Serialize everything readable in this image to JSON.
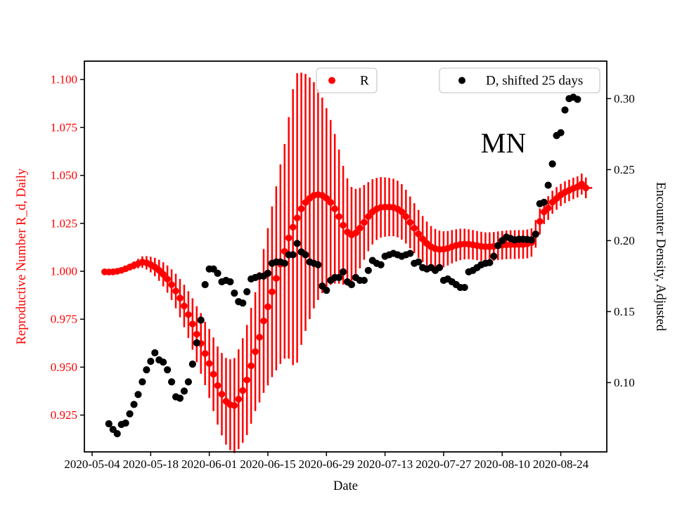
{
  "figure": {
    "background": "#ffffff",
    "annotation_text": "MN"
  },
  "legends": [
    {
      "label": "R",
      "marker_color": "#ff0000"
    },
    {
      "label": "D, shifted 25 days",
      "marker_color": "#000000"
    }
  ],
  "chart_data": {
    "type": "scatter",
    "title": "",
    "xlabel": "Date",
    "grid": false,
    "annotations": [
      {
        "text": "MN"
      }
    ],
    "x_axis": {
      "label": "Date",
      "epoch": "2020-05-04",
      "range_days": [
        -1.85,
        123.0
      ],
      "tick_labels": [
        "2020-05-04",
        "2020-05-18",
        "2020-06-01",
        "2020-06-15",
        "2020-06-29",
        "2020-07-13",
        "2020-07-27",
        "2020-08-10",
        "2020-08-24"
      ]
    },
    "y_left": {
      "label": "Reproductive Number R_d, Daily",
      "color": "#ff0000",
      "range": [
        0.9058,
        1.1096
      ],
      "ticks": [
        0.925,
        0.95,
        0.975,
        1.0,
        1.025,
        1.05,
        1.075,
        1.1
      ]
    },
    "y_right": {
      "label": "Encounter Density, Adjusted",
      "color": "#000000",
      "range": [
        0.0512,
        0.3264
      ],
      "ticks": [
        0.1,
        0.15,
        0.2,
        0.25,
        0.3
      ]
    },
    "series": [
      {
        "name": "R",
        "axis": "left",
        "color": "#ff0000",
        "marker": "circle",
        "has_error_bars": true,
        "last_point_horizontal_cap": true,
        "points": [
          [
            "2020-05-07",
            0.9997,
            0.0008
          ],
          [
            "2020-05-08",
            0.9996,
            0.0009
          ],
          [
            "2020-05-09",
            0.9997,
            0.001
          ],
          [
            "2020-05-10",
            1.0,
            0.0011
          ],
          [
            "2020-05-11",
            1.0005,
            0.0013
          ],
          [
            "2020-05-12",
            1.0013,
            0.0015
          ],
          [
            "2020-05-13",
            1.0022,
            0.0018
          ],
          [
            "2020-05-14",
            1.0031,
            0.0021
          ],
          [
            "2020-05-15",
            1.004,
            0.0025
          ],
          [
            "2020-05-16",
            1.0048,
            0.003
          ],
          [
            "2020-05-17",
            1.0044,
            0.0035
          ],
          [
            "2020-05-18",
            1.0035,
            0.0041
          ],
          [
            "2020-05-19",
            1.0022,
            0.0048
          ],
          [
            "2020-05-20",
            1.0005,
            0.0055
          ],
          [
            "2020-05-21",
            0.9984,
            0.0063
          ],
          [
            "2020-05-22",
            0.9959,
            0.0071
          ],
          [
            "2020-05-23",
            0.993,
            0.008
          ],
          [
            "2020-05-24",
            0.9897,
            0.009
          ],
          [
            "2020-05-25",
            0.986,
            0.01
          ],
          [
            "2020-05-26",
            0.9819,
            0.0111
          ],
          [
            "2020-05-27",
            0.9774,
            0.0122
          ],
          [
            "2020-05-28",
            0.9725,
            0.0134
          ],
          [
            "2020-05-29",
            0.9672,
            0.0146
          ],
          [
            "2020-05-30",
            0.9624,
            0.0158
          ],
          [
            "2020-05-31",
            0.9571,
            0.0165
          ],
          [
            "2020-06-01",
            0.9519,
            0.018
          ],
          [
            "2020-06-02",
            0.9463,
            0.0192
          ],
          [
            "2020-06-03",
            0.9404,
            0.0204
          ],
          [
            "2020-06-04",
            0.9359,
            0.0215
          ],
          [
            "2020-06-05",
            0.9322,
            0.0226
          ],
          [
            "2020-06-06",
            0.9304,
            0.0237
          ],
          [
            "2020-06-07",
            0.93,
            0.0248
          ],
          [
            "2020-06-08",
            0.9333,
            0.026
          ],
          [
            "2020-06-09",
            0.9378,
            0.0273
          ],
          [
            "2020-06-10",
            0.9433,
            0.0287
          ],
          [
            "2020-06-11",
            0.9507,
            0.0302
          ],
          [
            "2020-06-12",
            0.9581,
            0.031
          ],
          [
            "2020-06-13",
            0.9656,
            0.034
          ],
          [
            "2020-06-14",
            0.9741,
            0.0375
          ],
          [
            "2020-06-15",
            0.9815,
            0.041
          ],
          [
            "2020-06-16",
            0.9893,
            0.0445
          ],
          [
            "2020-06-17",
            0.9963,
            0.048
          ],
          [
            "2020-06-18",
            1.0037,
            0.052
          ],
          [
            "2020-06-19",
            1.0104,
            0.056
          ],
          [
            "2020-06-20",
            1.0174,
            0.063
          ],
          [
            "2020-06-21",
            1.023,
            0.072
          ],
          [
            "2020-06-22",
            1.0278,
            0.0755
          ],
          [
            "2020-06-23",
            1.0326,
            0.071
          ],
          [
            "2020-06-24",
            1.0359,
            0.067
          ],
          [
            "2020-06-25",
            1.0381,
            0.063
          ],
          [
            "2020-06-26",
            1.0396,
            0.059
          ],
          [
            "2020-06-27",
            1.04,
            0.055
          ],
          [
            "2020-06-28",
            1.0396,
            0.051
          ],
          [
            "2020-06-29",
            1.0381,
            0.047
          ],
          [
            "2020-06-30",
            1.0359,
            0.043
          ],
          [
            "2020-07-01",
            1.0326,
            0.039
          ],
          [
            "2020-07-02",
            1.0285,
            0.035
          ],
          [
            "2020-07-03",
            1.024,
            0.031
          ],
          [
            "2020-07-04",
            1.0205,
            0.028
          ],
          [
            "2020-07-05",
            1.019,
            0.025
          ],
          [
            "2020-07-06",
            1.02,
            0.023
          ],
          [
            "2020-07-07",
            1.0225,
            0.021
          ],
          [
            "2020-07-08",
            1.0255,
            0.0195
          ],
          [
            "2020-07-09",
            1.0285,
            0.018
          ],
          [
            "2020-07-10",
            1.031,
            0.017
          ],
          [
            "2020-07-11",
            1.0325,
            0.0162
          ],
          [
            "2020-07-12",
            1.0333,
            0.0158
          ],
          [
            "2020-07-13",
            1.0335,
            0.0155
          ],
          [
            "2020-07-14",
            1.0335,
            0.0152
          ],
          [
            "2020-07-15",
            1.0333,
            0.015
          ],
          [
            "2020-07-16",
            1.0325,
            0.0148
          ],
          [
            "2020-07-17",
            1.031,
            0.0145
          ],
          [
            "2020-07-18",
            1.0285,
            0.014
          ],
          [
            "2020-07-19",
            1.0255,
            0.0135
          ],
          [
            "2020-07-20",
            1.0225,
            0.013
          ],
          [
            "2020-07-21",
            1.0195,
            0.0125
          ],
          [
            "2020-07-22",
            1.0168,
            0.012
          ],
          [
            "2020-07-23",
            1.0145,
            0.0114
          ],
          [
            "2020-07-24",
            1.0128,
            0.0108
          ],
          [
            "2020-07-25",
            1.0118,
            0.0103
          ],
          [
            "2020-07-26",
            1.0114,
            0.0098
          ],
          [
            "2020-07-27",
            1.0115,
            0.0094
          ],
          [
            "2020-07-28",
            1.012,
            0.009
          ],
          [
            "2020-07-29",
            1.0128,
            0.0087
          ],
          [
            "2020-07-30",
            1.0135,
            0.0084
          ],
          [
            "2020-07-31",
            1.014,
            0.0082
          ],
          [
            "2020-08-01",
            1.0142,
            0.008
          ],
          [
            "2020-08-02",
            1.0141,
            0.0078
          ],
          [
            "2020-08-03",
            1.0138,
            0.0077
          ],
          [
            "2020-08-04",
            1.0134,
            0.0076
          ],
          [
            "2020-08-05",
            1.013,
            0.0076
          ],
          [
            "2020-08-06",
            1.0128,
            0.0075
          ],
          [
            "2020-08-07",
            1.0128,
            0.0075
          ],
          [
            "2020-08-08",
            1.013,
            0.0075
          ],
          [
            "2020-08-09",
            1.0133,
            0.0075
          ],
          [
            "2020-08-10",
            1.0136,
            0.0075
          ],
          [
            "2020-08-11",
            1.0138,
            0.0075
          ],
          [
            "2020-08-12",
            1.0139,
            0.0075
          ],
          [
            "2020-08-13",
            1.0139,
            0.0075
          ],
          [
            "2020-08-14",
            1.014,
            0.0075
          ],
          [
            "2020-08-15",
            1.014,
            0.0075
          ],
          [
            "2020-08-16",
            1.0143,
            0.0075
          ],
          [
            "2020-08-17",
            1.015,
            0.0074
          ],
          [
            "2020-08-18",
            1.0195,
            0.0072
          ],
          [
            "2020-08-19",
            1.026,
            0.0068
          ],
          [
            "2020-08-20",
            1.031,
            0.0064
          ],
          [
            "2020-08-21",
            1.033,
            0.0062
          ],
          [
            "2020-08-22",
            1.036,
            0.006
          ],
          [
            "2020-08-23",
            1.038,
            0.0059
          ],
          [
            "2020-08-24",
            1.0398,
            0.0058
          ],
          [
            "2020-08-25",
            1.0412,
            0.0057
          ],
          [
            "2020-08-26",
            1.0422,
            0.0056
          ],
          [
            "2020-08-27",
            1.0432,
            0.0056
          ],
          [
            "2020-08-28",
            1.044,
            0.0055
          ],
          [
            "2020-08-29",
            1.0455,
            0.0055
          ],
          [
            "2020-08-30",
            1.0435,
            0.0054
          ]
        ]
      },
      {
        "name": "D, shifted 25 days",
        "axis": "right",
        "color": "#000000",
        "marker": "circle",
        "has_error_bars": false,
        "points": [
          [
            "2020-05-08",
            0.071
          ],
          [
            "2020-05-09",
            0.067
          ],
          [
            "2020-05-10",
            0.064
          ],
          [
            "2020-05-11",
            0.0705
          ],
          [
            "2020-05-12",
            0.0715
          ],
          [
            "2020-05-13",
            0.078
          ],
          [
            "2020-05-14",
            0.0846
          ],
          [
            "2020-05-15",
            0.0916
          ],
          [
            "2020-05-16",
            0.1005
          ],
          [
            "2020-05-17",
            0.109
          ],
          [
            "2020-05-18",
            0.115
          ],
          [
            "2020-05-19",
            0.121
          ],
          [
            "2020-05-20",
            0.116
          ],
          [
            "2020-05-21",
            0.1144
          ],
          [
            "2020-05-22",
            0.109
          ],
          [
            "2020-05-23",
            0.1005
          ],
          [
            "2020-05-24",
            0.09
          ],
          [
            "2020-05-25",
            0.089
          ],
          [
            "2020-05-26",
            0.094
          ],
          [
            "2020-05-27",
            0.1005
          ],
          [
            "2020-05-28",
            0.113
          ],
          [
            "2020-05-29",
            0.128
          ],
          [
            "2020-05-30",
            0.144
          ],
          [
            "2020-05-31",
            0.169
          ],
          [
            "2020-06-01",
            0.18
          ],
          [
            "2020-06-02",
            0.18
          ],
          [
            "2020-06-03",
            0.177
          ],
          [
            "2020-06-04",
            0.171
          ],
          [
            "2020-06-05",
            0.172
          ],
          [
            "2020-06-06",
            0.171
          ],
          [
            "2020-06-07",
            0.163
          ],
          [
            "2020-06-08",
            0.157
          ],
          [
            "2020-06-09",
            0.156
          ],
          [
            "2020-06-10",
            0.164
          ],
          [
            "2020-06-11",
            0.173
          ],
          [
            "2020-06-12",
            0.174
          ],
          [
            "2020-06-13",
            0.175
          ],
          [
            "2020-06-14",
            0.175
          ],
          [
            "2020-06-15",
            0.177
          ],
          [
            "2020-06-16",
            0.184
          ],
          [
            "2020-06-17",
            0.185
          ],
          [
            "2020-06-18",
            0.185
          ],
          [
            "2020-06-19",
            0.184
          ],
          [
            "2020-06-20",
            0.19
          ],
          [
            "2020-06-21",
            0.19
          ],
          [
            "2020-06-22",
            0.198
          ],
          [
            "2020-06-23",
            0.192
          ],
          [
            "2020-06-24",
            0.19
          ],
          [
            "2020-06-25",
            0.185
          ],
          [
            "2020-06-26",
            0.184
          ],
          [
            "2020-06-27",
            0.183
          ],
          [
            "2020-06-28",
            0.168
          ],
          [
            "2020-06-29",
            0.165
          ],
          [
            "2020-06-30",
            0.172
          ],
          [
            "2020-07-01",
            0.174
          ],
          [
            "2020-07-02",
            0.174
          ],
          [
            "2020-07-03",
            0.178
          ],
          [
            "2020-07-04",
            0.171
          ],
          [
            "2020-07-05",
            0.169
          ],
          [
            "2020-07-06",
            0.174
          ],
          [
            "2020-07-07",
            0.172
          ],
          [
            "2020-07-08",
            0.172
          ],
          [
            "2020-07-09",
            0.179
          ],
          [
            "2020-07-10",
            0.186
          ],
          [
            "2020-07-11",
            0.184
          ],
          [
            "2020-07-12",
            0.183
          ],
          [
            "2020-07-13",
            0.189
          ],
          [
            "2020-07-14",
            0.19
          ],
          [
            "2020-07-15",
            0.191
          ],
          [
            "2020-07-16",
            0.19
          ],
          [
            "2020-07-17",
            0.189
          ],
          [
            "2020-07-18",
            0.19
          ],
          [
            "2020-07-19",
            0.191
          ],
          [
            "2020-07-20",
            0.184
          ],
          [
            "2020-07-21",
            0.185
          ],
          [
            "2020-07-22",
            0.181
          ],
          [
            "2020-07-23",
            0.18
          ],
          [
            "2020-07-24",
            0.181
          ],
          [
            "2020-07-25",
            0.179
          ],
          [
            "2020-07-26",
            0.181
          ],
          [
            "2020-07-27",
            0.172
          ],
          [
            "2020-07-28",
            0.173
          ],
          [
            "2020-07-29",
            0.171
          ],
          [
            "2020-07-30",
            0.169
          ],
          [
            "2020-07-31",
            0.167
          ],
          [
            "2020-08-01",
            0.167
          ],
          [
            "2020-08-02",
            0.178
          ],
          [
            "2020-08-03",
            0.179
          ],
          [
            "2020-08-04",
            0.181
          ],
          [
            "2020-08-05",
            0.183
          ],
          [
            "2020-08-06",
            0.184
          ],
          [
            "2020-08-07",
            0.1845
          ],
          [
            "2020-08-08",
            0.189
          ],
          [
            "2020-08-09",
            0.1965
          ],
          [
            "2020-08-10",
            0.2
          ],
          [
            "2020-08-11",
            0.2025
          ],
          [
            "2020-08-12",
            0.2015
          ],
          [
            "2020-08-13",
            0.2005
          ],
          [
            "2020-08-14",
            0.201
          ],
          [
            "2020-08-15",
            0.201
          ],
          [
            "2020-08-16",
            0.2008
          ],
          [
            "2020-08-17",
            0.2005
          ],
          [
            "2020-08-18",
            0.2045
          ],
          [
            "2020-08-19",
            0.226
          ],
          [
            "2020-08-20",
            0.227
          ],
          [
            "2020-08-21",
            0.239
          ],
          [
            "2020-08-22",
            0.254
          ],
          [
            "2020-08-23",
            0.274
          ],
          [
            "2020-08-24",
            0.276
          ],
          [
            "2020-08-25",
            0.292
          ],
          [
            "2020-08-26",
            0.3
          ],
          [
            "2020-08-27",
            0.301
          ],
          [
            "2020-08-28",
            0.2995
          ]
        ]
      }
    ]
  }
}
